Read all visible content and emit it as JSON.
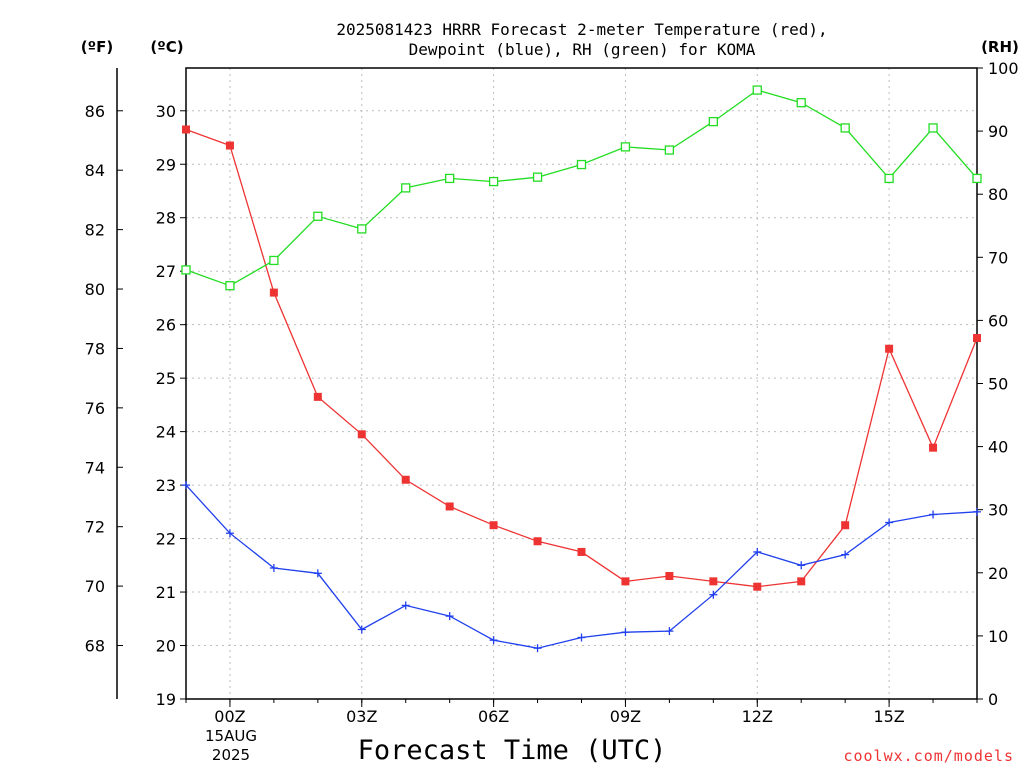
{
  "chart_data": {
    "type": "line",
    "title_line1": "2025081423 HRRR Forecast 2-meter Temperature (red),",
    "title_line2": "Dewpoint (blue), RH (green) for KOMA",
    "xlabel": "Forecast Time (UTC)",
    "unit_f": "(ºF)",
    "unit_c": "(ºC)",
    "unit_rh": "(RH)",
    "watermark": "coolwx.com/models",
    "date_label_1": "15AUG",
    "date_label_2": "2025",
    "x": [
      -1,
      0,
      1,
      2,
      3,
      4,
      5,
      6,
      7,
      8,
      9,
      10,
      11,
      12,
      13,
      14,
      15,
      16,
      17
    ],
    "xlim": [
      -1,
      17
    ],
    "x_ticks": [
      {
        "x": 0,
        "label": "00Z"
      },
      {
        "x": 3,
        "label": "03Z"
      },
      {
        "x": 6,
        "label": "06Z"
      },
      {
        "x": 9,
        "label": "09Z"
      },
      {
        "x": 12,
        "label": "12Z"
      },
      {
        "x": 15,
        "label": "15Z"
      }
    ],
    "ylim_c": [
      19,
      30.8
    ],
    "y_ticks_c": [
      19,
      20,
      21,
      22,
      23,
      24,
      25,
      26,
      27,
      28,
      29,
      30
    ],
    "y_ticks_f": [
      68,
      70,
      72,
      74,
      76,
      78,
      80,
      82,
      84,
      86
    ],
    "ylim_rh": [
      0,
      100
    ],
    "y_ticks_rh": [
      0,
      10,
      20,
      30,
      40,
      50,
      60,
      70,
      80,
      90,
      100
    ],
    "grid": true,
    "series": [
      {
        "name": "Temperature",
        "axis": "c",
        "color": "#ee3333",
        "marker": "filled-square",
        "values": [
          29.65,
          29.35,
          26.6,
          24.65,
          23.95,
          23.1,
          22.6,
          22.25,
          21.95,
          21.75,
          21.2,
          21.3,
          21.2,
          21.1,
          21.2,
          22.25,
          25.55,
          23.7,
          25.75
        ]
      },
      {
        "name": "Dewpoint",
        "axis": "c",
        "color": "#2040ee",
        "marker": "plus",
        "values": [
          23.0,
          22.1,
          21.45,
          21.35,
          20.3,
          20.75,
          20.55,
          20.1,
          19.95,
          20.15,
          20.25,
          20.27,
          20.95,
          21.75,
          21.5,
          21.7,
          22.3,
          22.45,
          22.5
        ]
      },
      {
        "name": "RH",
        "axis": "rh",
        "color": "#22dd22",
        "marker": "open-square",
        "values": [
          68,
          65.5,
          69.5,
          76.5,
          74.5,
          81,
          82.5,
          82,
          82.7,
          84.7,
          87.5,
          87,
          91.5,
          96.5,
          94.5,
          90.5,
          82.5,
          90.5,
          82.5
        ]
      }
    ]
  }
}
